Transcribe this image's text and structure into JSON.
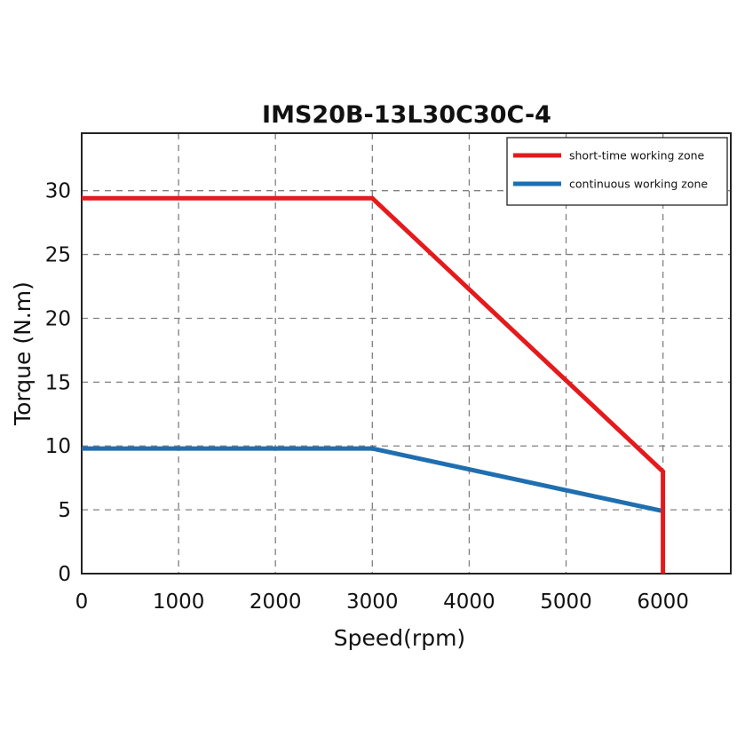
{
  "chart_data": {
    "type": "line",
    "title": "IMS20B-13L30C30C-4",
    "xlabel": "Speed(rpm)",
    "ylabel": "Torque (N.m)",
    "xlim": [
      0,
      6700
    ],
    "ylim": [
      0,
      34.5
    ],
    "xticks": [
      0,
      1000,
      2000,
      3000,
      4000,
      5000,
      6000
    ],
    "yticks": [
      0,
      5,
      10,
      15,
      20,
      25,
      30
    ],
    "grid": true,
    "legend_position": "top-right",
    "series": [
      {
        "name": "short-time working zone",
        "color": "#e41a1c",
        "points": [
          [
            0,
            29.4
          ],
          [
            3000,
            29.4
          ],
          [
            6000,
            8.0
          ],
          [
            6000,
            0
          ]
        ]
      },
      {
        "name": "continuous working zone",
        "color": "#1f6fb0",
        "points": [
          [
            0,
            9.8
          ],
          [
            3000,
            9.8
          ],
          [
            6000,
            4.9
          ]
        ]
      }
    ]
  }
}
